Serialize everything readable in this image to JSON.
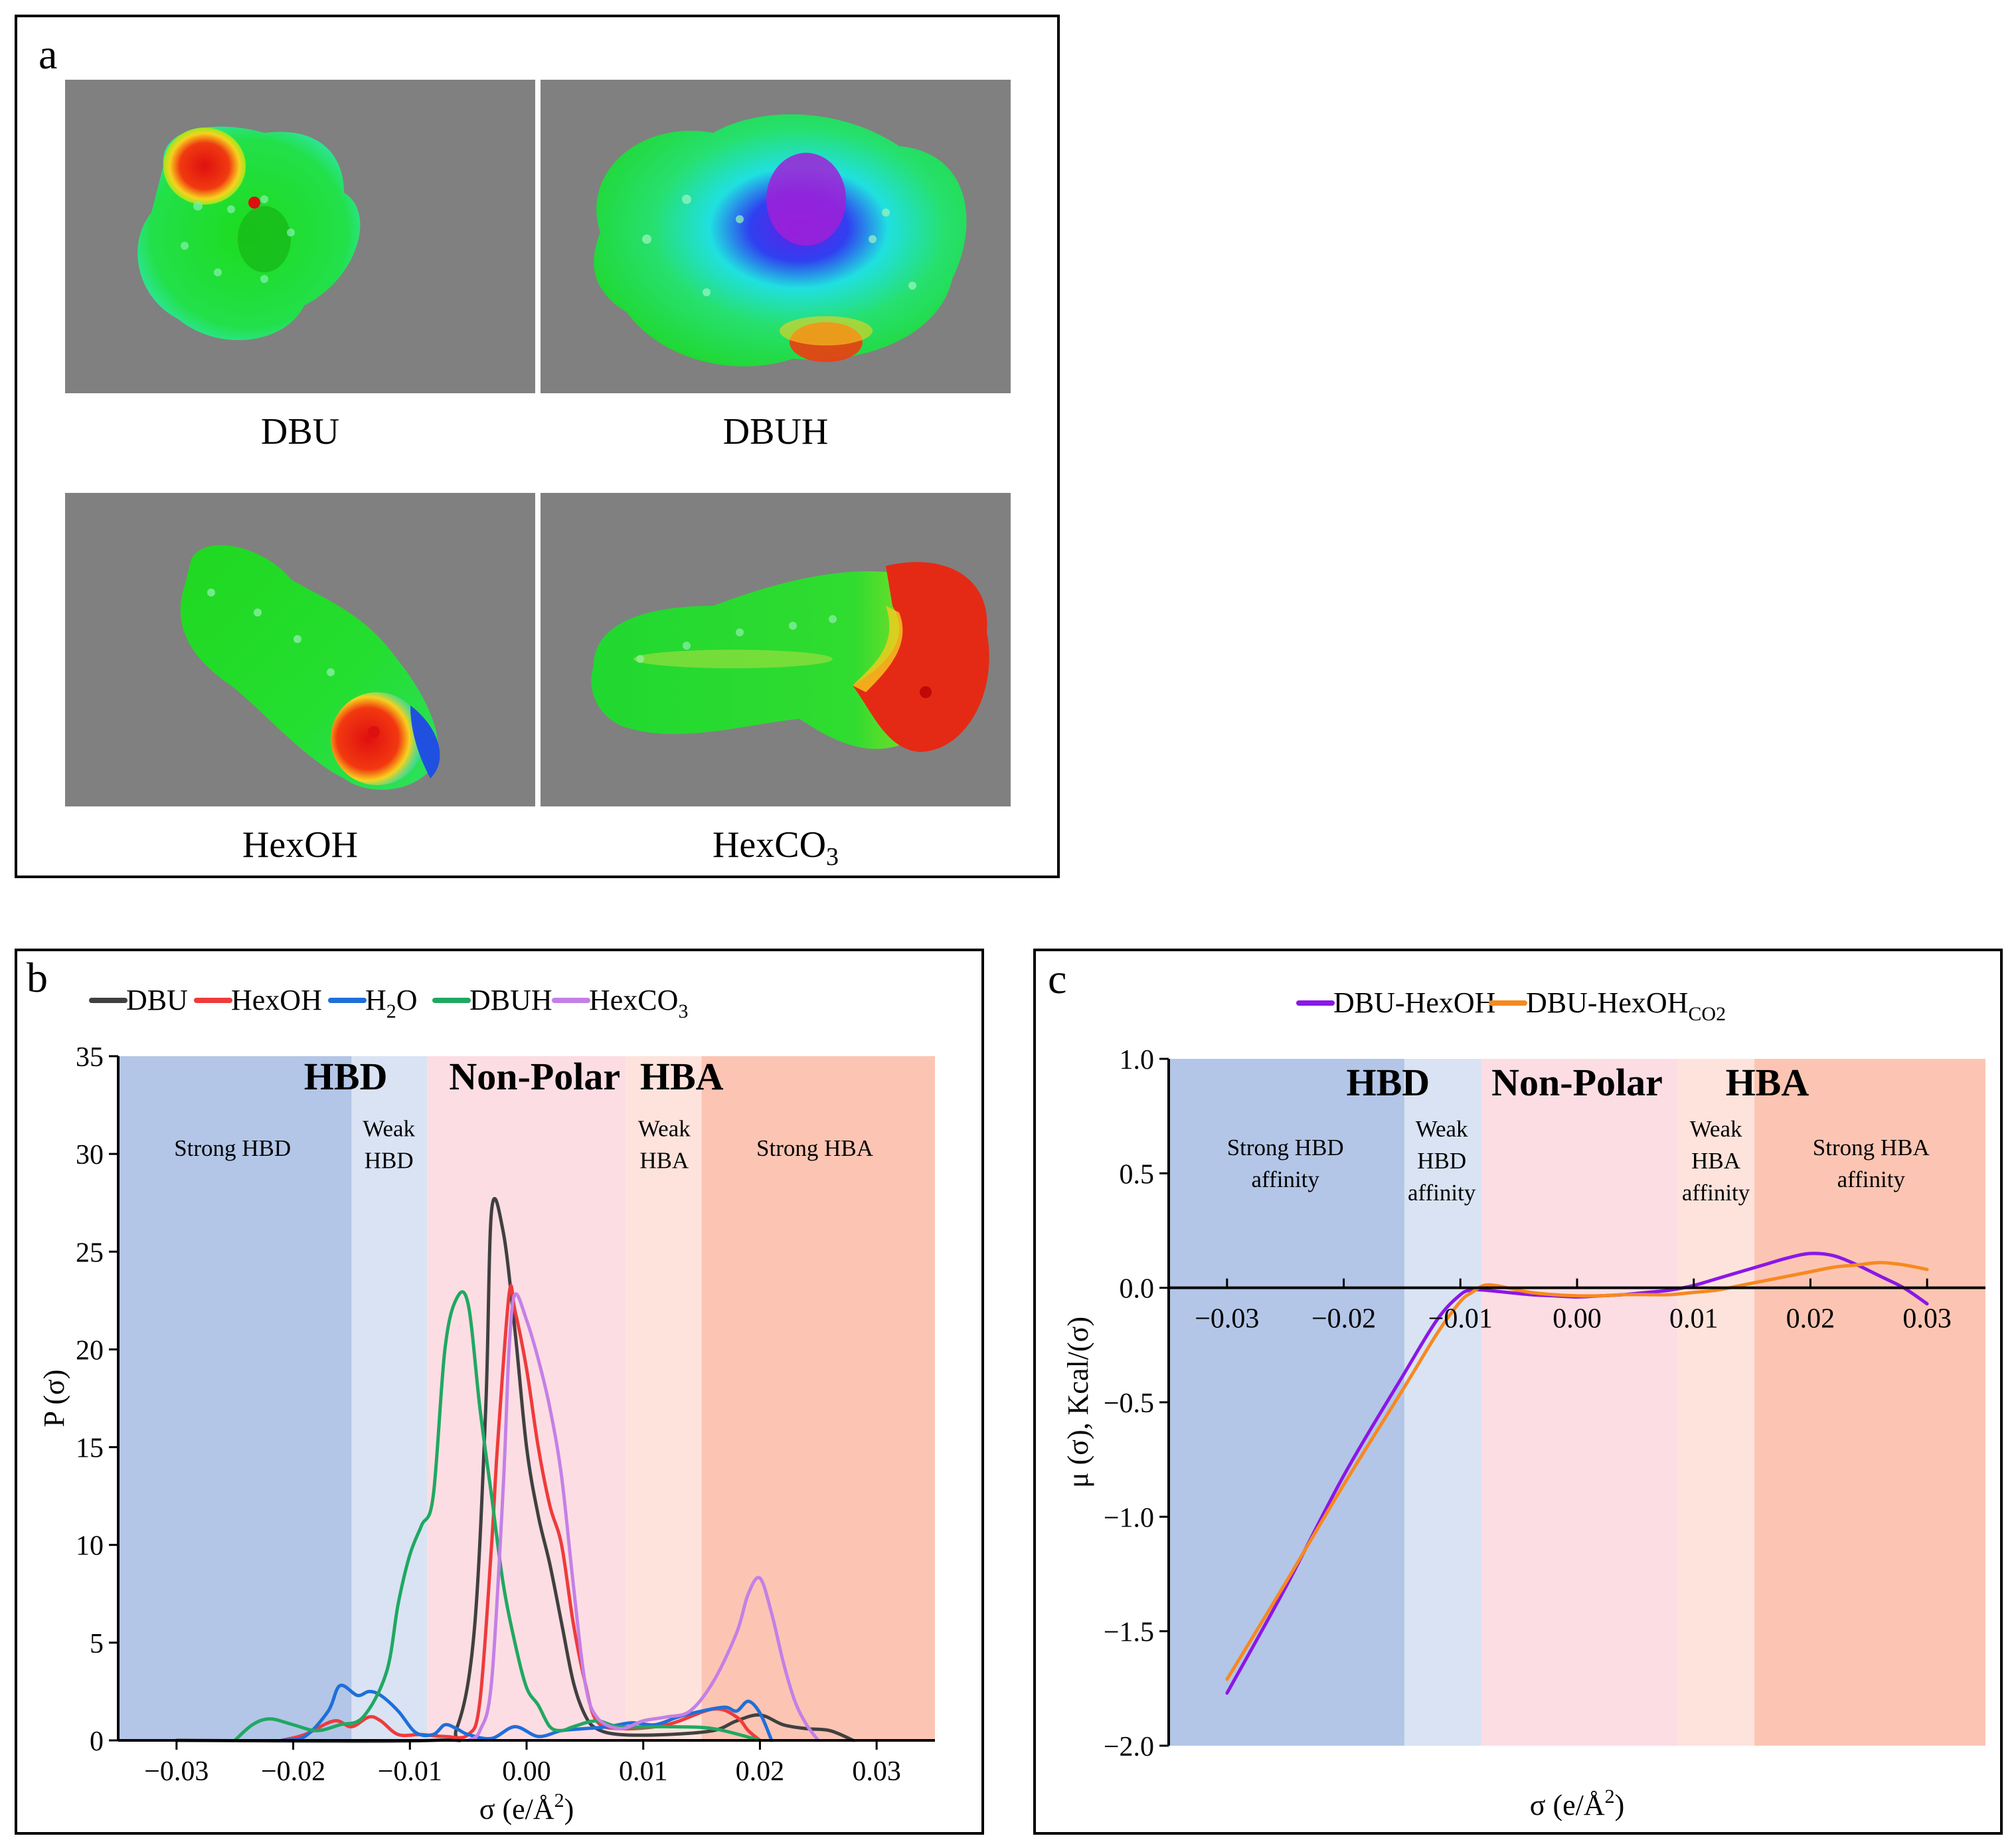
{
  "panel_a": {
    "letter": "a",
    "molecules": [
      {
        "name": "DBU",
        "sub": ""
      },
      {
        "name": "DBUH",
        "sub": ""
      },
      {
        "name": "HexOH",
        "sub": ""
      },
      {
        "name": "HexCO",
        "sub": "3"
      }
    ]
  },
  "panel_b": {
    "letter": "b"
  },
  "panel_c": {
    "letter": "c"
  },
  "colors": {
    "strong_hbd": "#b3c6e7",
    "weak_hbd": "#d9e3f3",
    "non_polar": "#fddde4",
    "weak_hba": "#fde3dc",
    "strong_hba": "#fcc5b3",
    "DBU": "#404040",
    "HexOH": "#ee3b3b",
    "H2O": "#1f6fd8",
    "DBUH": "#20a862",
    "HexCO3": "#c480e6",
    "DBU-HexOH": "#8b17e6",
    "DBU-HexOHCO2": "#f7891f"
  },
  "chart_data": [
    {
      "type": "line",
      "title": "",
      "xlabel": "σ (e/Å2)",
      "ylabel": "P (σ)",
      "xlim": [
        -0.035,
        0.035
      ],
      "ylim": [
        0,
        35
      ],
      "xticks": [
        -0.03,
        -0.02,
        -0.01,
        0.0,
        0.01,
        0.02,
        0.03
      ],
      "xtick_labels": [
        "−0.03",
        "−0.02",
        "−0.01",
        "0.00",
        "0.01",
        "0.02",
        "0.03"
      ],
      "yticks": [
        0,
        5,
        10,
        15,
        20,
        25,
        30,
        35
      ],
      "ytick_labels": [
        "0",
        "5",
        "10",
        "15",
        "20",
        "25",
        "30",
        "35"
      ],
      "legend_position": "top",
      "regions": [
        {
          "name": "Strong HBD",
          "from": -0.035,
          "to": -0.015,
          "color_key": "strong_hbd"
        },
        {
          "name": "Weak HBD",
          "from": -0.015,
          "to": -0.0085,
          "color_key": "weak_hbd"
        },
        {
          "name": "Non-Polar",
          "from": -0.0085,
          "to": 0.0085,
          "color_key": "non_polar"
        },
        {
          "name": "Weak HBA",
          "from": 0.0085,
          "to": 0.015,
          "color_key": "weak_hba"
        },
        {
          "name": "Strong HBA",
          "from": 0.015,
          "to": 0.035,
          "color_key": "strong_hba"
        }
      ],
      "big_labels": [
        {
          "text": "HBD",
          "x": -0.0155,
          "y": 33.3
        },
        {
          "text": "Non-Polar",
          "x": 0.0007,
          "y": 33.3
        },
        {
          "text": "HBA",
          "x": 0.0133,
          "y": 33.3
        }
      ],
      "small_labels": [
        {
          "lines": [
            "Strong HBD"
          ],
          "x": -0.0252,
          "y": 29.9
        },
        {
          "lines": [
            "Weak",
            "HBD"
          ],
          "x": -0.0118,
          "y": 30.9
        },
        {
          "lines": [
            "Weak",
            "HBA"
          ],
          "x": 0.0118,
          "y": 30.9
        },
        {
          "lines": [
            "Strong HBA"
          ],
          "x": 0.0247,
          "y": 29.9
        }
      ],
      "series": [
        {
          "name": "DBU",
          "sub": "",
          "color_key": "DBU",
          "x": [
            -0.03,
            -0.008,
            -0.006,
            -0.0045,
            -0.0035,
            -0.003,
            -0.002,
            -0.001,
            0.0,
            0.001,
            0.002,
            0.003,
            0.004,
            0.005,
            0.006,
            0.008,
            0.012,
            0.016,
            0.018,
            0.02,
            0.022,
            0.024,
            0.026,
            0.028
          ],
          "y": [
            0,
            0,
            0.6,
            5.5,
            17,
            27.1,
            26,
            21,
            15,
            11.5,
            9,
            6,
            3,
            1.3,
            0.6,
            0.3,
            0.3,
            0.5,
            1,
            1.3,
            0.8,
            0.6,
            0.5,
            0
          ]
        },
        {
          "name": "HexOH",
          "sub": "",
          "color_key": "HexOH",
          "x": [
            -0.021,
            -0.019,
            -0.0165,
            -0.015,
            -0.0135,
            -0.0125,
            -0.011,
            -0.009,
            -0.007,
            -0.005,
            -0.004,
            -0.003,
            -0.0025,
            -0.0015,
            -0.001,
            0.0,
            0.001,
            0.002,
            0.003,
            0.004,
            0.005,
            0.006,
            0.008,
            0.012,
            0.016,
            0.018,
            0.019,
            0.02
          ],
          "y": [
            0,
            0.3,
            1,
            0.7,
            1.2,
            1,
            0.3,
            0.3,
            0.2,
            0.3,
            2,
            10,
            15,
            22.8,
            22,
            19,
            15,
            12,
            10,
            6,
            3,
            1,
            0.6,
            0.8,
            1.6,
            1.2,
            0.5,
            0
          ]
        },
        {
          "name": "H",
          "sub": "2",
          "name2": "O",
          "color_key": "H2O",
          "x": [
            -0.021,
            -0.019,
            -0.017,
            -0.016,
            -0.0145,
            -0.0135,
            -0.0125,
            -0.011,
            -0.0095,
            -0.008,
            -0.007,
            -0.006,
            -0.005,
            -0.003,
            -0.001,
            0.001,
            0.003,
            0.005,
            0.007,
            0.009,
            0.011,
            0.013,
            0.015,
            0.017,
            0.018,
            0.019,
            0.02,
            0.021
          ],
          "y": [
            0,
            0.2,
            1.5,
            2.8,
            2.3,
            2.5,
            2.3,
            1.5,
            0.4,
            0.3,
            0.8,
            0.6,
            0.3,
            0.1,
            0.7,
            0.2,
            0.5,
            0.6,
            0.7,
            0.9,
            0.8,
            1.2,
            1.5,
            1.7,
            1.5,
            2,
            1.4,
            0
          ]
        },
        {
          "name": "DBUH",
          "sub": "",
          "color_key": "DBUH",
          "x": [
            -0.025,
            -0.0235,
            -0.022,
            -0.02,
            -0.018,
            -0.016,
            -0.014,
            -0.012,
            -0.011,
            -0.01,
            -0.009,
            -0.008,
            -0.007,
            -0.006,
            -0.005,
            -0.004,
            -0.003,
            -0.002,
            -0.001,
            0.0,
            0.001,
            0.002,
            0.003,
            0.004,
            0.006,
            0.008,
            0.012,
            0.016,
            0.02
          ],
          "y": [
            0,
            0.8,
            1.1,
            0.8,
            0.5,
            0.8,
            1.2,
            3.5,
            7,
            9.5,
            11,
            12.5,
            20,
            22.6,
            22.3,
            17,
            12.5,
            8,
            5,
            2.7,
            1.8,
            0.7,
            0.5,
            0.7,
            1,
            0.7,
            0.7,
            0.6,
            0
          ]
        },
        {
          "name": "HexCO",
          "sub": "3",
          "color_key": "HexCO3",
          "x": [
            -0.005,
            -0.004,
            -0.003,
            -0.002,
            -0.0015,
            -0.001,
            0.0,
            0.001,
            0.002,
            0.003,
            0.004,
            0.005,
            0.006,
            0.008,
            0.01,
            0.012,
            0.014,
            0.016,
            0.018,
            0.019,
            0.02,
            0.021,
            0.022,
            0.023,
            0.024,
            0.025
          ],
          "y": [
            0,
            0.5,
            3,
            13,
            20,
            22.8,
            21.5,
            19.5,
            17,
            13.5,
            8,
            3,
            1.2,
            0.6,
            1,
            1.2,
            1.5,
            3,
            5.5,
            7.5,
            8.3,
            6.5,
            4,
            2,
            0.8,
            0
          ]
        }
      ]
    },
    {
      "type": "line",
      "title": "",
      "xlabel": "σ (e/Å2)",
      "ylabel": "μ (σ),  Kcal/(σ)",
      "xlim": [
        -0.035,
        0.035
      ],
      "ylim": [
        -2.0,
        1.0
      ],
      "xticks": [
        -0.03,
        -0.02,
        -0.01,
        0.0,
        0.01,
        0.02,
        0.03
      ],
      "xtick_labels": [
        "−0.03",
        "−0.02",
        "−0.01",
        "0.00",
        "0.01",
        "0.02",
        "0.03"
      ],
      "yticks": [
        -2.0,
        -1.5,
        -1.0,
        -0.5,
        0.0,
        0.5,
        1.0
      ],
      "ytick_labels": [
        "−2.0",
        "−1.5",
        "−1.0",
        "−0.5",
        "0.0",
        "0.5",
        "1.0"
      ],
      "legend_position": "top",
      "regions": [
        {
          "name": "Strong HBD affinity",
          "from": -0.035,
          "to": -0.0148,
          "color_key": "strong_hbd"
        },
        {
          "name": "Weak HBD affinity",
          "from": -0.0148,
          "to": -0.0082,
          "color_key": "weak_hbd"
        },
        {
          "name": "Non-Polar",
          "from": -0.0082,
          "to": 0.0086,
          "color_key": "non_polar"
        },
        {
          "name": "Weak HBA affinity",
          "from": 0.0086,
          "to": 0.0152,
          "color_key": "weak_hba"
        },
        {
          "name": "Strong HBA affinity",
          "from": 0.0152,
          "to": 0.035,
          "color_key": "strong_hba"
        }
      ],
      "big_labels": [
        {
          "text": "HBD",
          "x": -0.0162,
          "y": 0.84
        },
        {
          "text": "Non-Polar",
          "x": 0.0,
          "y": 0.84
        },
        {
          "text": "HBA",
          "x": 0.0163,
          "y": 0.84
        }
      ],
      "small_labels": [
        {
          "lines": [
            "Strong HBD",
            "affinity"
          ],
          "x": -0.025,
          "y": 0.58
        },
        {
          "lines": [
            "Weak",
            "HBD",
            "affinity"
          ],
          "x": -0.0116,
          "y": 0.66
        },
        {
          "lines": [
            "Weak",
            "HBA",
            "affinity"
          ],
          "x": 0.0119,
          "y": 0.66
        },
        {
          "lines": [
            "Strong HBA",
            "affinity"
          ],
          "x": 0.0252,
          "y": 0.58
        }
      ],
      "series": [
        {
          "name": "DBU-HexOH",
          "sub": "",
          "color_key": "DBU-HexOH",
          "x": [
            -0.03,
            -0.025,
            -0.02,
            -0.015,
            -0.012,
            -0.01,
            -0.009,
            -0.008,
            -0.006,
            -0.004,
            -0.002,
            0.0,
            0.002,
            0.004,
            0.006,
            0.008,
            0.01,
            0.012,
            0.014,
            0.016,
            0.018,
            0.02,
            0.022,
            0.024,
            0.026,
            0.028,
            0.03
          ],
          "y": [
            -1.77,
            -1.31,
            -0.82,
            -0.39,
            -0.14,
            -0.03,
            -0.01,
            -0.01,
            -0.02,
            -0.03,
            -0.035,
            -0.04,
            -0.035,
            -0.03,
            -0.02,
            -0.01,
            0.01,
            0.04,
            0.07,
            0.1,
            0.13,
            0.15,
            0.14,
            0.1,
            0.05,
            0.0,
            -0.07
          ]
        },
        {
          "name": "DBU-HexOH",
          "sub": "CO2",
          "color_key": "DBU-HexOHCO2",
          "x": [
            -0.03,
            -0.025,
            -0.02,
            -0.015,
            -0.012,
            -0.01,
            -0.009,
            -0.008,
            -0.007,
            -0.006,
            -0.004,
            -0.002,
            0.0,
            0.002,
            0.004,
            0.006,
            0.008,
            0.01,
            0.012,
            0.014,
            0.016,
            0.018,
            0.02,
            0.022,
            0.024,
            0.026,
            0.028,
            0.03
          ],
          "y": [
            -1.71,
            -1.29,
            -0.86,
            -0.45,
            -0.2,
            -0.06,
            -0.02,
            0.01,
            0.01,
            0.0,
            -0.02,
            -0.03,
            -0.035,
            -0.035,
            -0.03,
            -0.03,
            -0.03,
            -0.02,
            -0.01,
            0.01,
            0.03,
            0.05,
            0.07,
            0.09,
            0.1,
            0.11,
            0.1,
            0.08
          ]
        }
      ]
    }
  ]
}
